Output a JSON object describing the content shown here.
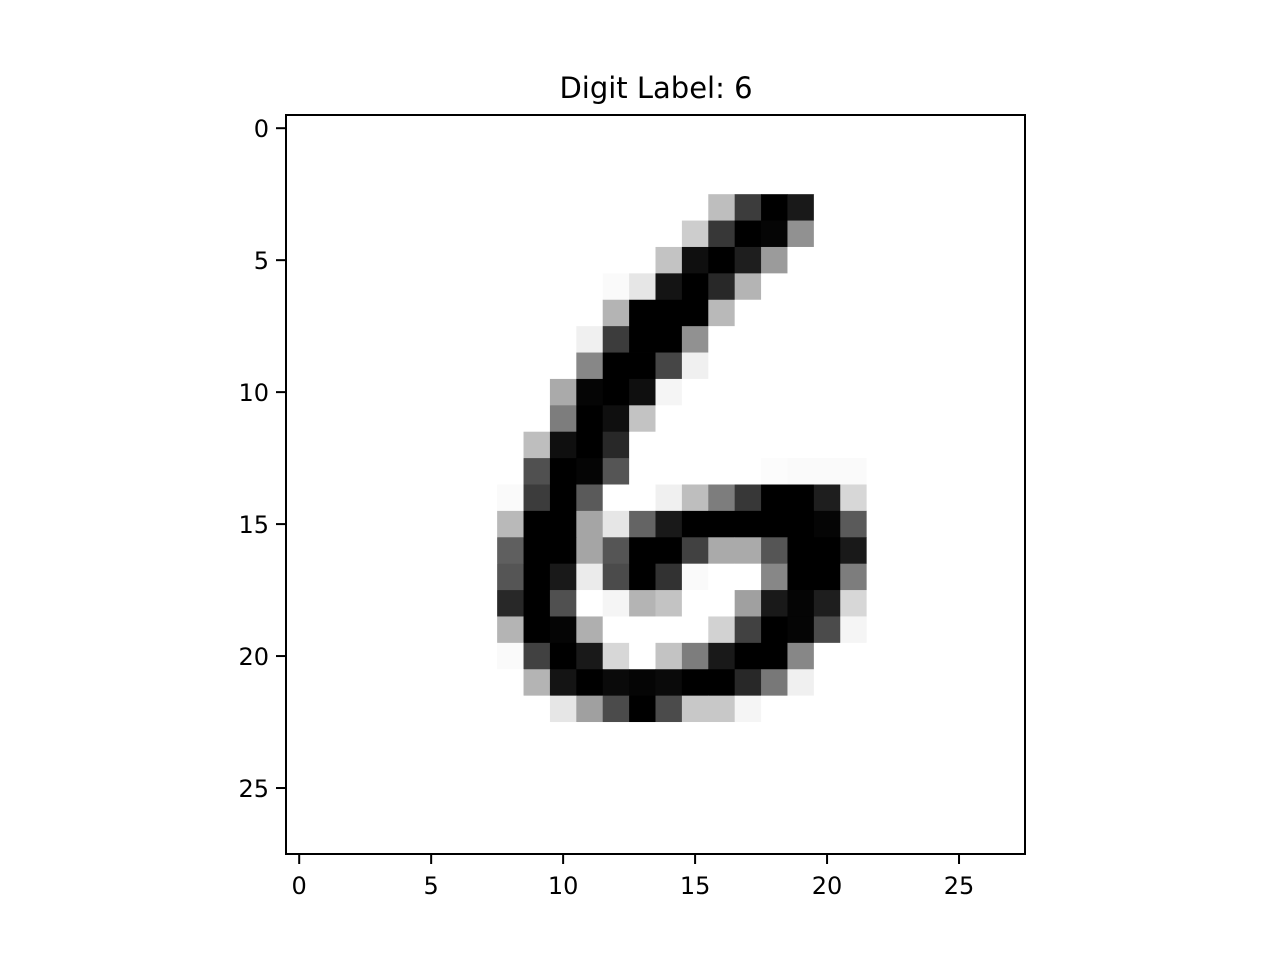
{
  "chart_data": {
    "type": "heatmap",
    "title": "Digit Label: 6",
    "xlabel": "",
    "ylabel": "",
    "colormap": "gray_r",
    "value_range": [
      0,
      255
    ],
    "rows": 28,
    "cols": 28,
    "xlim": [
      -0.5,
      27.5
    ],
    "ylim": [
      27.5,
      -0.5
    ],
    "x_ticks": [
      0,
      5,
      10,
      15,
      20,
      25
    ],
    "y_ticks": [
      0,
      5,
      10,
      15,
      20,
      25
    ],
    "x_tick_labels": [
      "0",
      "5",
      "10",
      "15",
      "20",
      "25"
    ],
    "y_tick_labels": [
      "0",
      "5",
      "10",
      "15",
      "20",
      "25"
    ],
    "grid": false,
    "pixels": [
      [
        0,
        0,
        0,
        0,
        0,
        0,
        0,
        0,
        0,
        0,
        0,
        0,
        0,
        0,
        0,
        0,
        0,
        0,
        0,
        0,
        0,
        0,
        0,
        0,
        0,
        0,
        0,
        0
      ],
      [
        0,
        0,
        0,
        0,
        0,
        0,
        0,
        0,
        0,
        0,
        0,
        0,
        0,
        0,
        0,
        0,
        0,
        0,
        0,
        0,
        0,
        0,
        0,
        0,
        0,
        0,
        0,
        0
      ],
      [
        0,
        0,
        0,
        0,
        0,
        0,
        0,
        0,
        0,
        0,
        0,
        0,
        0,
        0,
        0,
        0,
        0,
        0,
        0,
        0,
        0,
        0,
        0,
        0,
        0,
        0,
        0,
        0
      ],
      [
        0,
        0,
        0,
        0,
        0,
        0,
        0,
        0,
        0,
        0,
        0,
        0,
        0,
        0,
        0,
        0,
        65,
        195,
        255,
        230,
        0,
        0,
        0,
        0,
        0,
        0,
        0,
        0
      ],
      [
        0,
        0,
        0,
        0,
        0,
        0,
        0,
        0,
        0,
        0,
        0,
        0,
        0,
        0,
        0,
        50,
        200,
        255,
        250,
        110,
        0,
        0,
        0,
        0,
        0,
        0,
        0,
        0
      ],
      [
        0,
        0,
        0,
        0,
        0,
        0,
        0,
        0,
        0,
        0,
        0,
        0,
        0,
        0,
        60,
        240,
        255,
        225,
        100,
        0,
        0,
        0,
        0,
        0,
        0,
        0,
        0,
        0
      ],
      [
        0,
        0,
        0,
        0,
        0,
        0,
        0,
        0,
        0,
        0,
        0,
        0,
        5,
        25,
        235,
        255,
        215,
        75,
        0,
        0,
        0,
        0,
        0,
        0,
        0,
        0,
        0,
        0
      ],
      [
        0,
        0,
        0,
        0,
        0,
        0,
        0,
        0,
        0,
        0,
        0,
        0,
        75,
        255,
        255,
        255,
        70,
        0,
        0,
        0,
        0,
        0,
        0,
        0,
        0,
        0,
        0,
        0
      ],
      [
        0,
        0,
        0,
        0,
        0,
        0,
        0,
        0,
        0,
        0,
        0,
        15,
        195,
        255,
        255,
        110,
        0,
        0,
        0,
        0,
        0,
        0,
        0,
        0,
        0,
        0,
        0,
        0
      ],
      [
        0,
        0,
        0,
        0,
        0,
        0,
        0,
        0,
        0,
        0,
        0,
        120,
        255,
        255,
        185,
        15,
        0,
        0,
        0,
        0,
        0,
        0,
        0,
        0,
        0,
        0,
        0,
        0
      ],
      [
        0,
        0,
        0,
        0,
        0,
        0,
        0,
        0,
        0,
        0,
        85,
        250,
        255,
        240,
        10,
        0,
        0,
        0,
        0,
        0,
        0,
        0,
        0,
        0,
        0,
        0,
        0,
        0
      ],
      [
        0,
        0,
        0,
        0,
        0,
        0,
        0,
        0,
        0,
        0,
        130,
        255,
        240,
        60,
        0,
        0,
        0,
        0,
        0,
        0,
        0,
        0,
        0,
        0,
        0,
        0,
        0,
        0
      ],
      [
        0,
        0,
        0,
        0,
        0,
        0,
        0,
        0,
        0,
        65,
        240,
        255,
        215,
        0,
        0,
        0,
        0,
        0,
        0,
        0,
        0,
        0,
        0,
        0,
        0,
        0,
        0,
        0
      ],
      [
        0,
        0,
        0,
        0,
        0,
        0,
        0,
        0,
        0,
        175,
        255,
        250,
        170,
        0,
        0,
        0,
        0,
        0,
        3,
        5,
        5,
        5,
        0,
        0,
        0,
        0,
        0,
        0
      ],
      [
        0,
        0,
        0,
        0,
        0,
        0,
        0,
        0,
        5,
        195,
        255,
        165,
        0,
        0,
        15,
        65,
        130,
        200,
        255,
        255,
        225,
        40,
        0,
        0,
        0,
        0,
        0,
        0
      ],
      [
        0,
        0,
        0,
        0,
        0,
        0,
        0,
        0,
        70,
        255,
        255,
        90,
        25,
        155,
        230,
        255,
        255,
        255,
        255,
        255,
        250,
        165,
        0,
        0,
        0,
        0,
        0,
        0
      ],
      [
        0,
        0,
        0,
        0,
        0,
        0,
        0,
        0,
        160,
        255,
        255,
        90,
        170,
        255,
        255,
        190,
        85,
        85,
        170,
        255,
        255,
        230,
        0,
        0,
        0,
        0,
        0,
        0
      ],
      [
        0,
        0,
        0,
        0,
        0,
        0,
        0,
        0,
        170,
        255,
        230,
        20,
        180,
        255,
        205,
        5,
        0,
        0,
        120,
        255,
        255,
        130,
        0,
        0,
        0,
        0,
        0,
        0
      ],
      [
        0,
        0,
        0,
        0,
        0,
        0,
        0,
        0,
        215,
        255,
        175,
        0,
        10,
        75,
        60,
        0,
        0,
        95,
        230,
        250,
        225,
        40,
        0,
        0,
        0,
        0,
        0,
        0
      ],
      [
        0,
        0,
        0,
        0,
        0,
        0,
        0,
        0,
        75,
        255,
        250,
        80,
        0,
        0,
        0,
        0,
        45,
        190,
        255,
        250,
        180,
        10,
        0,
        0,
        0,
        0,
        0,
        0
      ],
      [
        0,
        0,
        0,
        0,
        0,
        0,
        0,
        0,
        5,
        190,
        255,
        230,
        40,
        0,
        60,
        130,
        230,
        255,
        255,
        120,
        0,
        0,
        0,
        0,
        0,
        0,
        0,
        0
      ],
      [
        0,
        0,
        0,
        0,
        0,
        0,
        0,
        0,
        0,
        75,
        235,
        255,
        245,
        250,
        245,
        255,
        255,
        215,
        135,
        15,
        0,
        0,
        0,
        0,
        0,
        0,
        0,
        0
      ],
      [
        0,
        0,
        0,
        0,
        0,
        0,
        0,
        0,
        0,
        0,
        25,
        95,
        180,
        255,
        180,
        55,
        55,
        10,
        0,
        0,
        0,
        0,
        0,
        0,
        0,
        0,
        0,
        0
      ],
      [
        0,
        0,
        0,
        0,
        0,
        0,
        0,
        0,
        0,
        0,
        0,
        0,
        0,
        0,
        0,
        0,
        0,
        0,
        0,
        0,
        0,
        0,
        0,
        0,
        0,
        0,
        0,
        0
      ],
      [
        0,
        0,
        0,
        0,
        0,
        0,
        0,
        0,
        0,
        0,
        0,
        0,
        0,
        0,
        0,
        0,
        0,
        0,
        0,
        0,
        0,
        0,
        0,
        0,
        0,
        0,
        0,
        0
      ],
      [
        0,
        0,
        0,
        0,
        0,
        0,
        0,
        0,
        0,
        0,
        0,
        0,
        0,
        0,
        0,
        0,
        0,
        0,
        0,
        0,
        0,
        0,
        0,
        0,
        0,
        0,
        0,
        0
      ],
      [
        0,
        0,
        0,
        0,
        0,
        0,
        0,
        0,
        0,
        0,
        0,
        0,
        0,
        0,
        0,
        0,
        0,
        0,
        0,
        0,
        0,
        0,
        0,
        0,
        0,
        0,
        0,
        0
      ],
      [
        0,
        0,
        0,
        0,
        0,
        0,
        0,
        0,
        0,
        0,
        0,
        0,
        0,
        0,
        0,
        0,
        0,
        0,
        0,
        0,
        0,
        0,
        0,
        0,
        0,
        0,
        0,
        0
      ]
    ]
  }
}
